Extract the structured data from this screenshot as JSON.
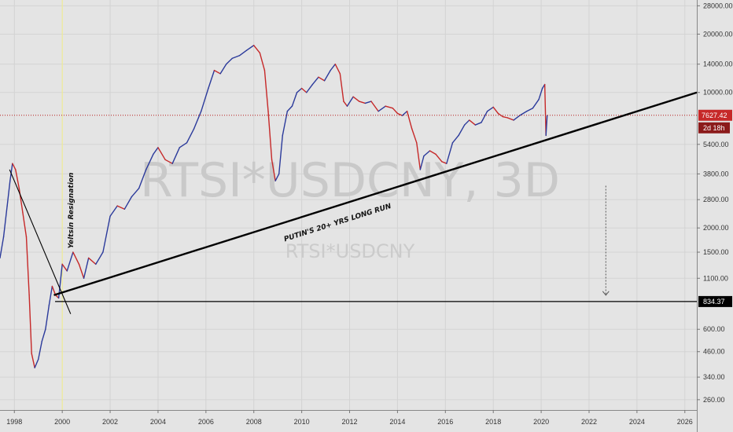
{
  "colors": {
    "background": "#e4e4e4",
    "grid": "#d3d3d3",
    "price_line": "#b71c1c",
    "series_up": "#2b3a9b",
    "series_down": "#c62828",
    "drawing": "#000000",
    "event_line": "#f4f08a",
    "badge_red": "#c62828",
    "badge_black": "#000000",
    "vol_arrow": "#555555"
  },
  "chart_data": {
    "type": "line",
    "symbol": "RTSI*USDCNY, 3D",
    "watermark_small": "RTSI*USDCNY",
    "y_scale": "log",
    "ylim": [
      230,
      30000
    ],
    "xlim": [
      1997.4,
      2026.5
    ],
    "grid": true,
    "x_ticks": [
      "1998",
      "2000",
      "2002",
      "2004",
      "2006",
      "2008",
      "2010",
      "2012",
      "2014",
      "2016",
      "2018",
      "2020",
      "2022",
      "2024",
      "2026"
    ],
    "x_tick_values": [
      1998,
      2000,
      2002,
      2004,
      2006,
      2008,
      2010,
      2012,
      2014,
      2016,
      2018,
      2020,
      2022,
      2024,
      2026
    ],
    "y_ticks": [
      "260.00",
      "340.00",
      "460.00",
      "600.00",
      "1100.00",
      "1500.00",
      "2000.00",
      "2800.00",
      "3800.00",
      "5400.00",
      "10000.00",
      "14000.00",
      "20000.00",
      "28000.00"
    ],
    "y_tick_values": [
      260,
      340,
      460,
      600,
      1100,
      1500,
      2000,
      2800,
      3800,
      5400,
      10000,
      14000,
      20000,
      28000
    ],
    "series": [
      {
        "x": [
          1997.4,
          1997.55,
          1997.7,
          1997.82,
          1997.92,
          1998.05,
          1998.2,
          1998.35,
          1998.5,
          1998.62,
          1998.72,
          1998.85,
          1999.0,
          1999.15,
          1999.3,
          1999.45,
          1999.58,
          1999.72,
          1999.85,
          2000.0,
          2000.2,
          2000.45,
          2000.7,
          2000.9,
          2001.1,
          2001.4,
          2001.7,
          2002.0,
          2002.3,
          2002.6,
          2002.9,
          2003.2,
          2003.5,
          2003.8,
          2004.0,
          2004.3,
          2004.6,
          2004.9,
          2005.2,
          2005.5,
          2005.8,
          2006.1,
          2006.35,
          2006.6,
          2006.85,
          2007.1,
          2007.4,
          2007.7,
          2008.0,
          2008.25,
          2008.45,
          2008.6,
          2008.75,
          2008.9,
          2009.05,
          2009.2,
          2009.4,
          2009.6,
          2009.8,
          2010.0,
          2010.2,
          2010.45,
          2010.7,
          2010.95,
          2011.2,
          2011.4,
          2011.6,
          2011.75,
          2011.9,
          2012.15,
          2012.4,
          2012.65,
          2012.9,
          2013.2,
          2013.5,
          2013.8,
          2014.0,
          2014.2,
          2014.4,
          2014.6,
          2014.8,
          2014.95,
          2015.1,
          2015.35,
          2015.6,
          2015.85,
          2016.05,
          2016.3,
          2016.55,
          2016.8,
          2017.0,
          2017.25,
          2017.5,
          2017.75,
          2018.0,
          2018.2,
          2018.4,
          2018.6,
          2018.85,
          2019.1,
          2019.4,
          2019.65,
          2019.9,
          2020.05,
          2020.15,
          2020.2,
          2020.25
        ],
        "y": [
          1400,
          1800,
          2600,
          3500,
          4300,
          4000,
          3200,
          2400,
          1800,
          900,
          450,
          380,
          420,
          520,
          600,
          800,
          1000,
          900,
          870,
          1300,
          1200,
          1500,
          1300,
          1100,
          1400,
          1300,
          1500,
          2300,
          2600,
          2500,
          2900,
          3200,
          4000,
          4800,
          5200,
          4500,
          4300,
          5200,
          5500,
          6500,
          8000,
          10500,
          13000,
          12500,
          14000,
          15000,
          15500,
          16500,
          17500,
          16000,
          13000,
          8000,
          4500,
          3500,
          3800,
          6000,
          8000,
          8500,
          10000,
          10500,
          10000,
          11000,
          12000,
          11500,
          13000,
          14000,
          12500,
          9000,
          8500,
          9500,
          9000,
          8800,
          9000,
          8000,
          8500,
          8300,
          7800,
          7600,
          8000,
          6500,
          5500,
          4000,
          4700,
          5000,
          4800,
          4400,
          4300,
          5500,
          6000,
          6800,
          7200,
          6800,
          7000,
          8000,
          8400,
          7800,
          7500,
          7400,
          7200,
          7600,
          8000,
          8300,
          9200,
          10500,
          11000,
          6000,
          7600
        ]
      }
    ],
    "last_price": 7627.42,
    "last_price_label": "7627.42",
    "countdown_label": "2d 18h",
    "horizontal_level": 834.37,
    "horizontal_level_label": "834.37",
    "event_line_x": 2000.0,
    "annotations": [
      {
        "text": "PUTIN'S 20+ YRS LONG RUN"
      },
      {
        "text": "Yeltsin Resignation"
      }
    ],
    "trendlines": [
      {
        "name": "long-run-support",
        "x1": 1999.65,
        "y1": 900,
        "x2": 2026.5,
        "y2": 10000
      },
      {
        "name": "1998-downtrend",
        "x1": 1997.8,
        "y1": 4000,
        "x2": 2000.35,
        "y2": 720
      }
    ],
    "projection_arrow": {
      "x": 2022.7,
      "y_from": 3300,
      "y_to": 900
    }
  }
}
